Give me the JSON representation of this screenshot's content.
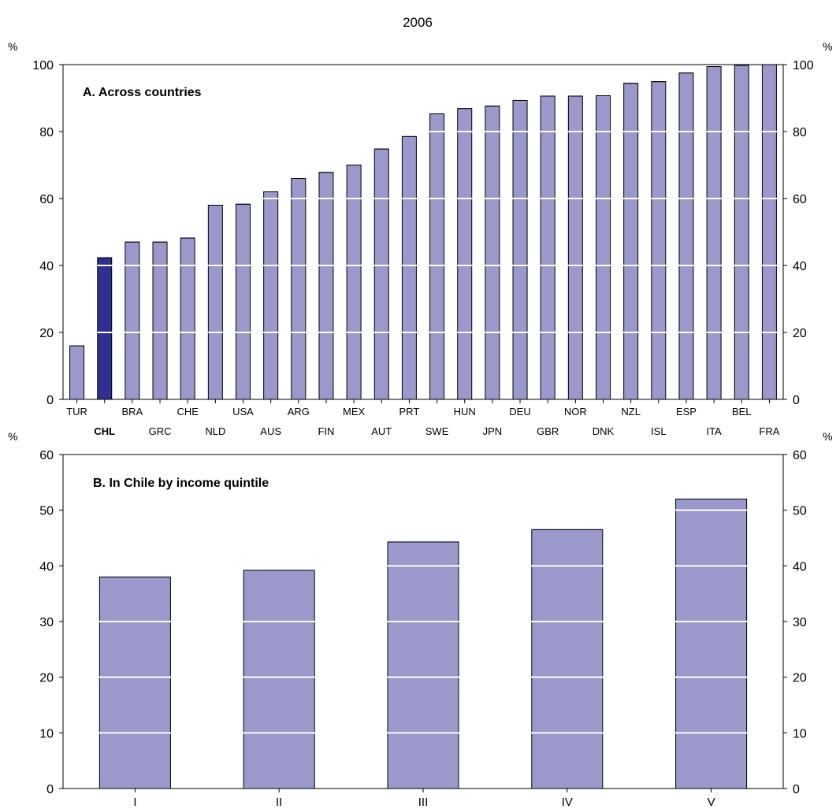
{
  "figure": {
    "title": "2006"
  },
  "colors": {
    "bar": "#9b98cb",
    "highlight": "#2e3192",
    "grid": "#ffffff",
    "axis": "#000000"
  },
  "chart_data": [
    {
      "type": "bar",
      "title": "A. Across countries",
      "ylabel_left": "%",
      "ylabel_right": "%",
      "ylim": [
        0,
        100
      ],
      "yticks": [
        0,
        20,
        40,
        60,
        80,
        100
      ],
      "grid": "horizontal white lines across bars",
      "highlight": "CHL",
      "categories": [
        "TUR",
        "CHL",
        "BRA",
        "GRC",
        "CHE",
        "NLD",
        "USA",
        "AUS",
        "ARG",
        "FIN",
        "MEX",
        "AUT",
        "PRT",
        "SWE",
        "HUN",
        "JPN",
        "DEU",
        "GBR",
        "NOR",
        "DNK",
        "NZL",
        "ISL",
        "ESP",
        "ITA",
        "BEL",
        "FRA"
      ],
      "values": [
        16,
        42.3,
        47,
        47,
        48.2,
        58,
        58.3,
        62,
        66,
        67.8,
        70,
        74.8,
        78.5,
        85.3,
        86.9,
        87.6,
        89.3,
        90.6,
        90.6,
        90.7,
        94.4,
        94.9,
        97.5,
        99.4,
        99.8,
        100
      ]
    },
    {
      "type": "bar",
      "title": "B. In Chile by income quintile",
      "ylabel_left": "%",
      "ylabel_right": "%",
      "ylim": [
        0,
        60
      ],
      "yticks": [
        0,
        10,
        20,
        30,
        40,
        50,
        60
      ],
      "grid": "horizontal white lines across bars",
      "categories": [
        "I",
        "II",
        "III",
        "IV",
        "V"
      ],
      "values": [
        38,
        39.2,
        44.3,
        46.5,
        52
      ]
    }
  ]
}
